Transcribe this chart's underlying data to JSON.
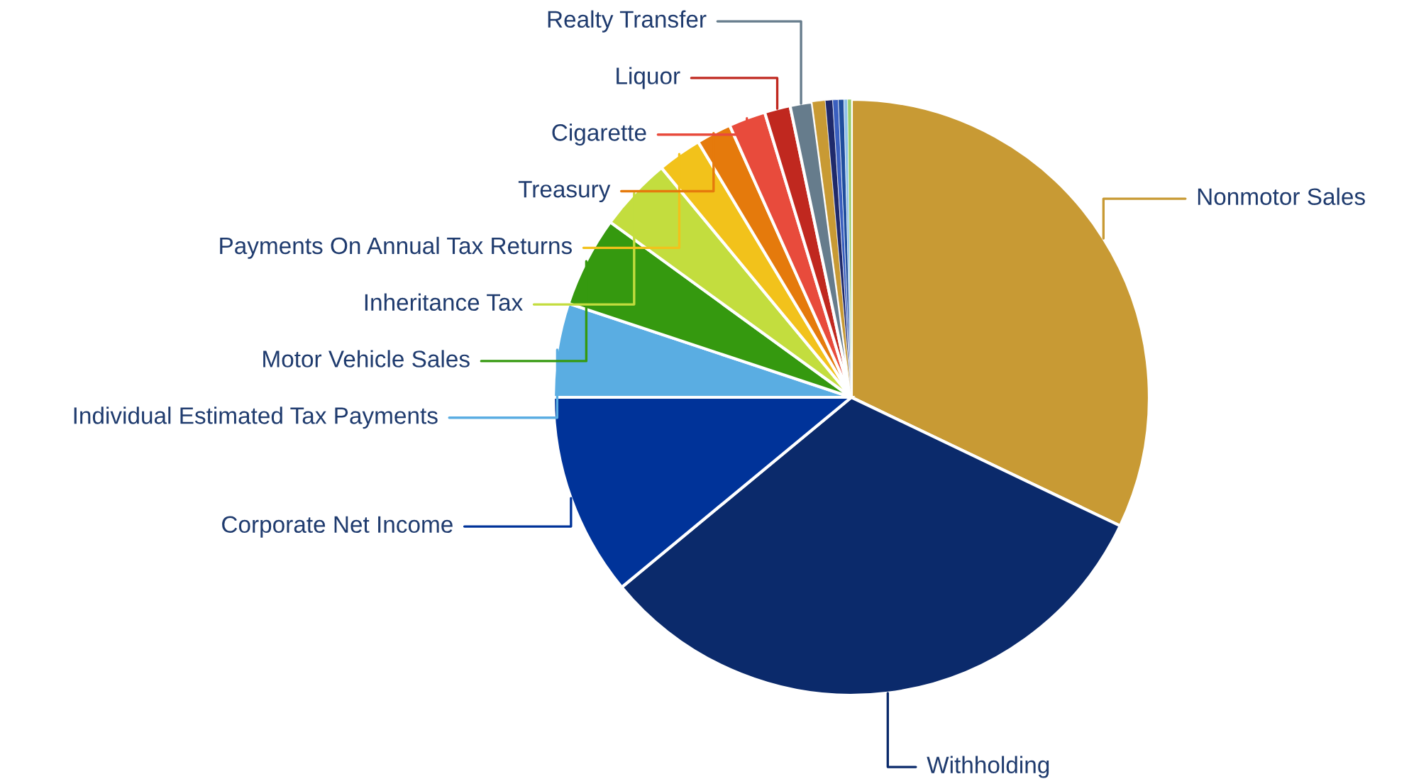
{
  "chart_data": {
    "type": "pie",
    "categories": [
      "Nonmotor Sales",
      "Withholding",
      "Corporate Net Income",
      "Individual Estimated Tax Payments",
      "Motor Vehicle Sales",
      "Inheritance Tax",
      "Payments On Annual Tax Returns",
      "Treasury",
      "Cigarette",
      "Liquor",
      "Realty Transfer",
      null,
      null,
      null,
      null,
      null,
      null
    ],
    "values": [
      32.1,
      31.9,
      11.0,
      5.1,
      4.9,
      4.0,
      2.4,
      1.9,
      2.0,
      1.4,
      1.2,
      0.7,
      0.4,
      0.3,
      0.3,
      0.2,
      0.2
    ],
    "colors": [
      "#c89a34",
      "#0b2a6b",
      "#003399",
      "#5aade2",
      "#35990f",
      "#c3dd3e",
      "#f2c21b",
      "#e57a0c",
      "#e84b3c",
      "#c0281f",
      "#667c8c",
      "#c89a34",
      "#1f2a6b",
      "#3a5fbf",
      "#1f4e9e",
      "#8ec0ea",
      "#9acd6a"
    ],
    "legend": false
  }
}
